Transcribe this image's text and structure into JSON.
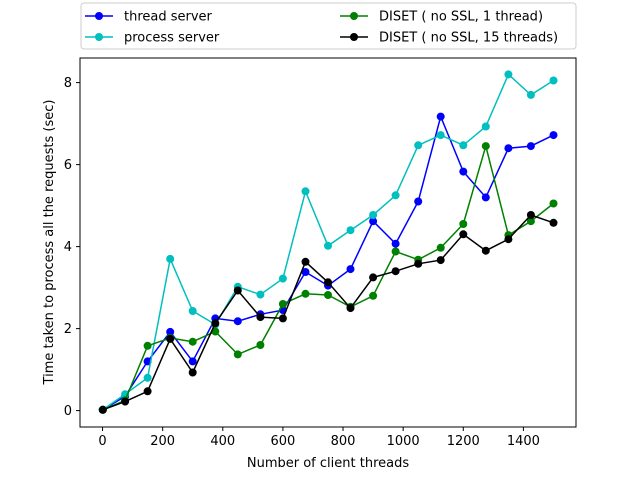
{
  "chart_data": {
    "type": "line",
    "title": "",
    "xlabel": "Number of client threads",
    "ylabel": "Time taken to process all the requests (sec)",
    "xlim": [
      -75,
      1575
    ],
    "ylim": [
      -0.4,
      8.6
    ],
    "xticks": [
      0,
      200,
      400,
      600,
      800,
      1000,
      1200,
      1400
    ],
    "yticks": [
      0,
      2,
      4,
      6,
      8
    ],
    "grid": false,
    "legend_placement": "above plot, two columns",
    "x": [
      1,
      75,
      150,
      225,
      300,
      375,
      450,
      525,
      600,
      675,
      750,
      825,
      900,
      975,
      1050,
      1125,
      1200,
      1275,
      1350,
      1425,
      1500
    ],
    "series": [
      {
        "name": "thread server",
        "color": "#0000ff",
        "values": [
          0.02,
          0.35,
          1.2,
          1.92,
          1.2,
          2.25,
          2.18,
          2.35,
          2.45,
          3.38,
          3.05,
          3.45,
          4.62,
          4.07,
          5.1,
          7.17,
          5.83,
          5.2,
          6.4,
          6.45,
          6.72
        ]
      },
      {
        "name": "process server",
        "color": "#00bfbf",
        "values": [
          0.02,
          0.4,
          0.8,
          3.7,
          2.43,
          2.1,
          3.02,
          2.83,
          3.22,
          5.35,
          4.02,
          4.4,
          4.77,
          5.25,
          6.47,
          6.72,
          6.47,
          6.93,
          8.2,
          7.7,
          8.05
        ]
      },
      {
        "name": "DISET ( no SSL, 1 thread)",
        "color": "#008000",
        "values": [
          0.02,
          0.25,
          1.58,
          1.77,
          1.68,
          1.93,
          1.37,
          1.6,
          2.6,
          2.85,
          2.82,
          2.53,
          2.8,
          3.88,
          3.68,
          3.97,
          4.55,
          6.45,
          4.28,
          4.62,
          5.05
        ]
      },
      {
        "name": "DISET ( no SSL, 15 threads)",
        "color": "#000000",
        "values": [
          0.02,
          0.22,
          0.47,
          1.75,
          0.93,
          2.13,
          2.93,
          2.28,
          2.25,
          3.63,
          3.13,
          2.5,
          3.25,
          3.4,
          3.58,
          3.67,
          4.3,
          3.9,
          4.18,
          4.77,
          4.58
        ]
      }
    ]
  }
}
